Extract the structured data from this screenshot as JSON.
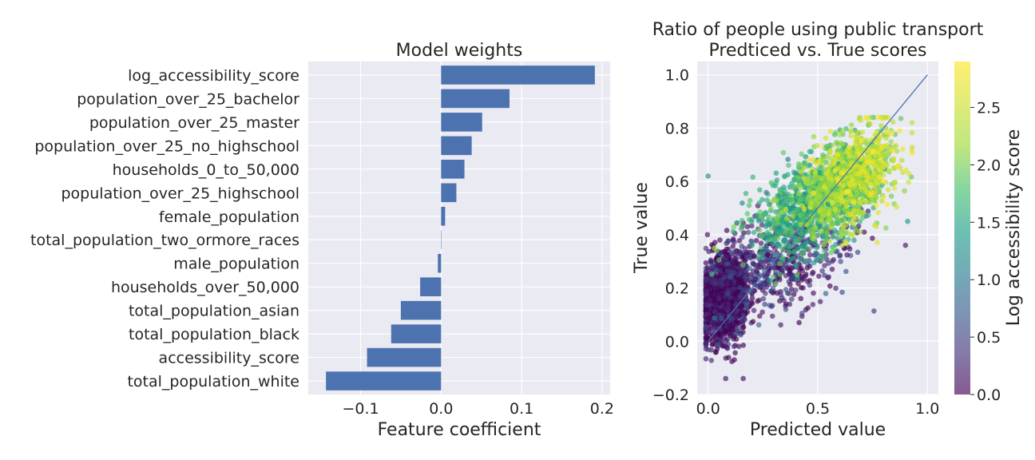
{
  "chart_data": [
    {
      "type": "bar",
      "orientation": "horizontal",
      "title": "Model weights",
      "xlabel": "Feature coefficient",
      "ylabel": "",
      "xlim": [
        -0.165,
        0.21
      ],
      "xticks": [
        -0.1,
        0.0,
        0.1,
        0.2
      ],
      "xtick_labels": [
        "−0.1",
        "0.0",
        "0.1",
        "0.2"
      ],
      "bar_color": "#4c72b0",
      "grid": true,
      "categories": [
        "log_accessibility_score",
        "population_over_25_bachelor",
        "population_over_25_master",
        "population_over_25_no_highschool",
        "households_0_to_50,000",
        "population_over_25_highschool",
        "female_population",
        "total_population_two_ormore_races",
        "male_population",
        "households_over_50,000",
        "total_population_asian",
        "total_population_black",
        "accessibility_score",
        "total_population_white"
      ],
      "values": [
        0.191,
        0.085,
        0.051,
        0.038,
        0.029,
        0.019,
        0.005,
        0.0,
        -0.004,
        -0.026,
        -0.05,
        -0.062,
        -0.092,
        -0.143
      ]
    },
    {
      "type": "scatter",
      "title": "Ratio of people using public transport\nPredticed vs. True scores",
      "title_lines": [
        "Ratio of people using public transport",
        "Predticed vs. True scores"
      ],
      "xlabel": "Predicted value",
      "ylabel": "True value",
      "xlim": [
        -0.05,
        1.05
      ],
      "ylim": [
        -0.2,
        1.05
      ],
      "xticks": [
        0.0,
        0.5,
        1.0
      ],
      "xtick_labels": [
        "0.0",
        "0.5",
        "1.0"
      ],
      "yticks": [
        -0.2,
        0.0,
        0.2,
        0.4,
        0.6,
        0.8,
        1.0
      ],
      "ytick_labels": [
        "−0.2",
        "0.0",
        "0.2",
        "0.4",
        "0.6",
        "0.8",
        "1.0"
      ],
      "reference_line": {
        "x": [
          0.0,
          1.0
        ],
        "y": [
          0.0,
          1.0
        ],
        "color": "#4c72b0"
      },
      "colorbar": {
        "label": "Log accessibility score",
        "colormap": "viridis",
        "range": [
          0.0,
          2.9
        ],
        "ticks": [
          0.0,
          0.5,
          1.0,
          1.5,
          2.0,
          2.5
        ],
        "tick_labels": [
          "0.0",
          "0.5",
          "1.0",
          "1.5",
          "2.0",
          "2.5"
        ]
      },
      "point_alpha": 0.65,
      "clusters": [
        {
          "color_value": 0.1,
          "count": 1300,
          "x_mean": 0.08,
          "x_sd": 0.055,
          "y_mean": 0.17,
          "y_sd": 0.085
        },
        {
          "color_value": 0.3,
          "count": 500,
          "x_mean": 0.35,
          "x_sd": 0.17,
          "y_mean": 0.3,
          "y_sd": 0.1
        },
        {
          "color_value": 1.6,
          "count": 700,
          "x_mean": 0.45,
          "x_sd": 0.12,
          "y_mean": 0.5,
          "y_sd": 0.08
        },
        {
          "color_value": 2.1,
          "count": 900,
          "x_mean": 0.62,
          "x_sd": 0.1,
          "y_mean": 0.6,
          "y_sd": 0.085
        },
        {
          "color_value": 2.6,
          "count": 250,
          "x_mean": 0.7,
          "x_sd": 0.1,
          "y_mean": 0.64,
          "y_sd": 0.08
        }
      ],
      "outliers": [
        {
          "x": 0.0,
          "y": 0.62,
          "c": 1.2
        },
        {
          "x": 0.08,
          "y": -0.14,
          "c": 0.1
        },
        {
          "x": 0.16,
          "y": -0.14,
          "c": 0.1
        },
        {
          "x": 0.9,
          "y": 0.36,
          "c": 0.1
        },
        {
          "x": 0.93,
          "y": 0.82,
          "c": 2.4
        },
        {
          "x": 0.91,
          "y": 0.45,
          "c": 1.3
        }
      ]
    }
  ]
}
